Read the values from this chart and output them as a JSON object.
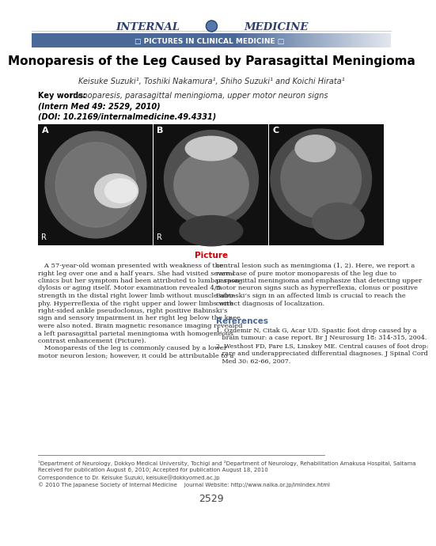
{
  "title": "Monoparesis of the Leg Caused by Parasagittal Meningioma",
  "authors": "Keisuke Suzuki¹, Toshiki Nakamura¹, Shiho Suzuki¹ and Koichi Hirata¹",
  "keywords_label": "Key words:",
  "keywords": "monoparesis, parasagittal meningioma, upper motor neuron signs",
  "citation1": "(Intern Med 49: 2529, 2010)",
  "citation2": "(DOI: 10.2169/internalmedicine.49.4331)",
  "section_banner": "□ PICTURES IN CLINICAL MEDICINE □",
  "picture_label": "Picture",
  "body_left_lines": [
    "   A 57-year-old woman presented with weakness of the",
    "right leg over one and a half years. She had visited several",
    "clinics but her symptom had been attributed to lumbar spon-",
    "dylosis or aging itself. Motor examination revealed 4/5",
    "strength in the distal right lower limb without muscle atro-",
    "phy. Hyperreflexia of the right upper and lower limbs with",
    "right-sided ankle pseudoclonus, right positive Babinski’s",
    "sign and sensory impairment in her right leg below the knee",
    "were also noted. Brain magnetic resonance imaging revealed",
    "a left parasagittal parietal meningioma with homogeneous",
    "contrast enhancement (Picture).",
    "   Monoparesis of the leg is commonly caused by a lower",
    "motor neuron lesion; however, it could be attributable to a"
  ],
  "body_right_lines": [
    "central lesion such as meningioma (1, 2). Here, we report a",
    "rare case of pure motor monoparesis of the leg due to",
    "parasagittal meningioma and emphasize that detecting upper",
    "motor neuron signs such as hyperreflexia, clonus or positive",
    "Babinski’s sign in an affected limb is crucial to reach the",
    "correct diagnosis of localization."
  ],
  "references_title": "References",
  "ref1_lines": [
    "1. Ozdemir N, Citak G, Acar UD. Spastic foot drop caused by a",
    "   brain tumour: a case report. Br J Neurosurg 18: 314-315, 2004."
  ],
  "ref2_lines": [
    "2. Westhost FD, Pare LS, Linskey ME. Central causes of foot drop:",
    "   rare and underappreciated differential diagnoses. J Spinal Cord",
    "   Med 30: 62-66, 2007."
  ],
  "footer1": "¹Department of Neurology, Dokkyo Medical University, Tochigi and ²Department of Neurology, Rehabilitation Amakusa Hospital, Saitama",
  "footer2": "Received for publication August 6, 2010; Accepted for publication August 18, 2010",
  "footer3": "Correspondence to Dr. Keisuke Suzuki, keisuke@dokkyomed.ac.jp",
  "footer4": "© 2010 The Japanese Society of Internal Medicine    Journal Website: http://www.naika.or.jp/imindex.html",
  "page_number": "2529",
  "banner_color": "#4a6898",
  "banner_text_color": "#ffffff",
  "title_color": "#000000",
  "picture_label_color": "#cc0000",
  "references_color": "#4a6898",
  "header_color": "#2c3e6b",
  "body_text_color": "#222222",
  "footer_text_color": "#444444",
  "bg_color": "#ffffff",
  "sep_line_color": "#888888"
}
